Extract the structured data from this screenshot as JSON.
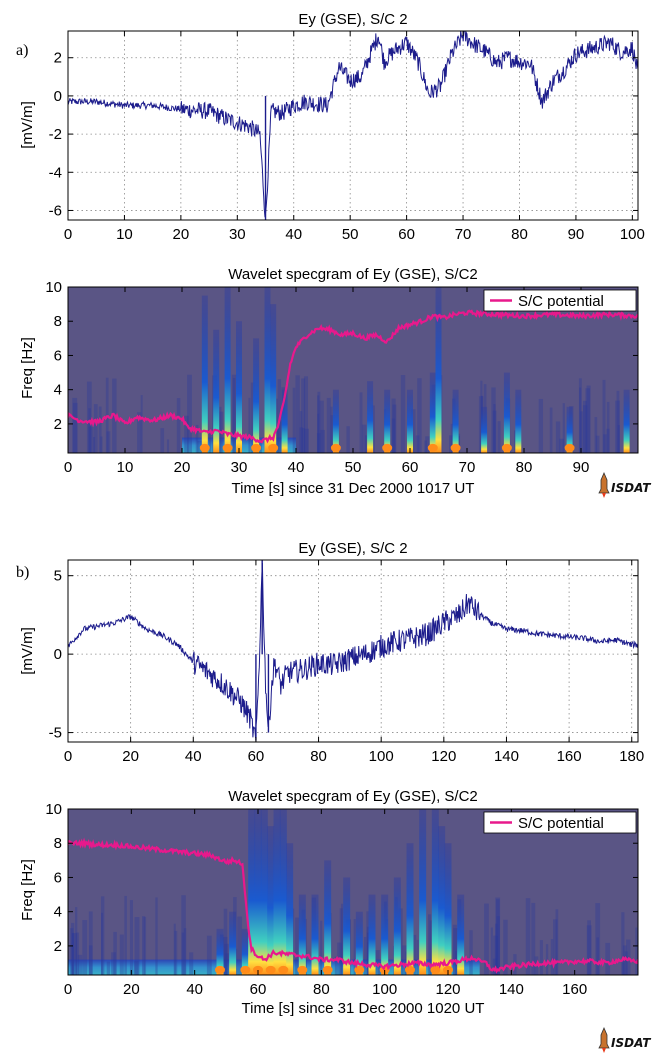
{
  "panels": [
    {
      "letter": "a)",
      "title": "Ey (GSE), S/C 2",
      "ylabel": "[mV/m]",
      "xticks": [
        "0",
        "10",
        "20",
        "30",
        "40",
        "50",
        "60",
        "70",
        "80",
        "90",
        "100"
      ],
      "yticks": [
        "2",
        "0",
        "-2",
        "-4",
        "-6"
      ]
    },
    {
      "title": "Wavelet specgram of Ey (GSE), S/C2",
      "ylabel": "Freq [Hz]",
      "xlabel": "Time [s] since 31 Dec 2000 1017 UT",
      "xticks": [
        "0",
        "10",
        "20",
        "30",
        "40",
        "50",
        "60",
        "70",
        "80",
        "90"
      ],
      "yticks": [
        "10",
        "8",
        "6",
        "4",
        "2"
      ],
      "legend": "S/C potential",
      "logo": "ISDAT"
    },
    {
      "letter": "b)",
      "title": "Ey (GSE), S/C 2",
      "ylabel": "[mV/m]",
      "xticks": [
        "0",
        "20",
        "40",
        "60",
        "80",
        "100",
        "120",
        "140",
        "160",
        "180"
      ],
      "yticks": [
        "5",
        "0",
        "-5"
      ]
    },
    {
      "title": "Wavelet specgram of Ey (GSE), S/C2",
      "ylabel": "Freq [Hz]",
      "xlabel": "Time [s] since 31 Dec 2000 1020 UT",
      "xticks": [
        "0",
        "20",
        "40",
        "60",
        "80",
        "100",
        "120",
        "140",
        "160"
      ],
      "yticks": [
        "10",
        "8",
        "6",
        "4",
        "2"
      ],
      "legend": "S/C potential",
      "logo": "ISDAT"
    }
  ],
  "chart_data": [
    {
      "type": "line",
      "title": "Ey (GSE), S/C 2",
      "ylabel": "[mV/m]",
      "xlim": [
        0,
        101
      ],
      "ylim": [
        -6.5,
        3.4
      ],
      "grid": true,
      "color": "#1c1c8c",
      "series": [
        {
          "x": [
            0,
            5,
            10,
            15,
            20,
            25,
            28,
            30,
            32,
            34,
            35,
            36,
            38,
            40,
            42,
            44,
            46,
            48,
            50,
            52,
            54,
            55,
            56,
            58,
            60,
            62,
            64,
            66,
            68,
            70,
            72,
            74,
            76,
            78,
            80,
            82,
            84,
            86,
            88,
            90,
            92,
            94,
            96,
            98,
            100,
            101
          ],
          "values": [
            -0.3,
            -0.3,
            -0.5,
            -0.5,
            -0.7,
            -0.8,
            -1.2,
            -1.4,
            -1.6,
            -2.0,
            -6.5,
            -0.8,
            -0.9,
            -0.5,
            -0.3,
            -0.4,
            -0.5,
            1.5,
            0.8,
            1.0,
            2.5,
            3.2,
            1.8,
            2.4,
            2.8,
            1.8,
            0.1,
            0.5,
            2.2,
            3.2,
            2.7,
            2.3,
            1.7,
            2.0,
            1.8,
            1.7,
            -0.3,
            0.8,
            1.4,
            2.2,
            2.4,
            2.6,
            2.8,
            2.3,
            2.5,
            1.2
          ]
        }
      ]
    },
    {
      "type": "heatmap",
      "title": "Wavelet specgram of Ey (GSE), S/C2",
      "xlabel": "Time [s] since 31 Dec 2000 1017 UT",
      "ylabel": "Freq [Hz]",
      "xlim": [
        0,
        100
      ],
      "ylim": [
        0.3,
        10
      ],
      "legend": {
        "entries": [
          "S/C potential"
        ],
        "position": "top-right"
      },
      "series": [
        {
          "name": "S/C potential",
          "color": "#e8198c",
          "x": [
            0,
            2,
            5,
            8,
            10,
            12,
            15,
            18,
            20,
            21,
            22,
            24,
            26,
            28,
            30,
            32,
            34,
            35,
            36,
            37,
            38,
            39,
            40,
            42,
            44,
            46,
            48,
            50,
            52,
            54,
            56,
            58,
            60,
            62,
            64,
            66,
            68,
            70,
            75,
            80,
            85,
            90,
            95,
            100
          ],
          "values": [
            2.5,
            2.2,
            2.1,
            2.5,
            2.0,
            2.4,
            2.2,
            2.5,
            2.3,
            1.8,
            1.7,
            1.5,
            1.6,
            1.4,
            1.3,
            1.2,
            1.0,
            1.1,
            1.2,
            2.0,
            3.5,
            5.5,
            6.5,
            7.2,
            7.6,
            7.5,
            7.2,
            7.3,
            7.0,
            7.2,
            6.8,
            7.6,
            7.8,
            8.0,
            8.3,
            8.2,
            8.4,
            8.5,
            8.4,
            8.3,
            8.4,
            8.3,
            8.4,
            8.3
          ]
        }
      ],
      "bursts_x": [
        24,
        26,
        28,
        30,
        33,
        35,
        36,
        38,
        47,
        53,
        56,
        60,
        64,
        65,
        68,
        73,
        77,
        79,
        88,
        98
      ],
      "bursts_height": [
        9.5,
        7.5,
        10,
        8,
        7,
        10,
        9,
        4,
        4,
        4.5,
        4,
        4,
        5,
        10,
        4,
        3,
        5,
        4,
        3,
        4
      ],
      "enhanced_band_x": [
        20,
        40
      ]
    },
    {
      "type": "line",
      "title": "Ey (GSE), S/C 2",
      "ylabel": "[mV/m]",
      "xlim": [
        0,
        182
      ],
      "ylim": [
        -5.6,
        6
      ],
      "grid": true,
      "color": "#1c1c8c",
      "series": [
        {
          "x": [
            0,
            5,
            10,
            15,
            20,
            25,
            30,
            35,
            40,
            45,
            50,
            55,
            58,
            60,
            61,
            62,
            63,
            64,
            65,
            66,
            68,
            70,
            75,
            80,
            85,
            90,
            95,
            100,
            105,
            110,
            115,
            120,
            125,
            128,
            130,
            135,
            140,
            145,
            150,
            155,
            160,
            165,
            170,
            175,
            180,
            182
          ],
          "values": [
            0.5,
            1.6,
            1.8,
            2.0,
            2.4,
            1.6,
            1.2,
            0.6,
            -0.5,
            -1.2,
            -2.0,
            -3.0,
            -4.0,
            -5.5,
            -1.0,
            6.0,
            -1.5,
            -5.0,
            -2.0,
            -0.5,
            -2.0,
            -1.2,
            -1.0,
            -0.6,
            -0.7,
            -0.3,
            0.0,
            0.5,
            0.8,
            1.0,
            1.3,
            2.0,
            2.5,
            3.3,
            2.8,
            2.0,
            1.6,
            1.5,
            1.3,
            1.2,
            1.1,
            1.0,
            0.8,
            0.9,
            0.6,
            0.6
          ]
        }
      ]
    },
    {
      "type": "heatmap",
      "title": "Wavelet specgram of Ey (GSE), S/C2",
      "xlabel": "Time [s] since 31 Dec 2000 1020 UT",
      "ylabel": "Freq [Hz]",
      "xlim": [
        0,
        180
      ],
      "ylim": [
        0.3,
        10
      ],
      "legend": {
        "entries": [
          "S/C potential"
        ],
        "position": "top-right"
      },
      "series": [
        {
          "name": "S/C potential",
          "color": "#e8198c",
          "x": [
            0,
            5,
            10,
            15,
            20,
            25,
            30,
            35,
            40,
            45,
            50,
            52,
            54,
            55,
            56,
            57,
            58,
            60,
            62,
            65,
            70,
            75,
            80,
            85,
            90,
            95,
            100,
            105,
            110,
            115,
            120,
            125,
            128,
            130,
            132,
            134,
            135,
            140,
            145,
            150,
            155,
            160,
            165,
            170,
            175,
            180
          ],
          "values": [
            8.0,
            8.0,
            7.9,
            7.9,
            7.8,
            7.7,
            7.6,
            7.5,
            7.4,
            7.3,
            6.9,
            7.0,
            6.9,
            6.8,
            5.0,
            3.0,
            1.8,
            1.4,
            1.2,
            1.6,
            1.5,
            1.4,
            1.2,
            1.2,
            1.0,
            0.9,
            0.8,
            0.9,
            1.0,
            0.9,
            1.0,
            1.2,
            1.3,
            1.1,
            1.0,
            0.6,
            0.6,
            0.8,
            0.9,
            1.0,
            1.0,
            1.1,
            1.1,
            1.0,
            1.2,
            1.1
          ]
        }
      ],
      "bursts_x": [
        48,
        52,
        56,
        58,
        60,
        62,
        64,
        66,
        68,
        70,
        74,
        78,
        82,
        88,
        92,
        96,
        100,
        104,
        108,
        112,
        116,
        118,
        120,
        124
      ],
      "bursts_height": [
        3,
        4,
        3,
        10,
        10,
        10,
        9,
        10,
        10,
        8,
        5,
        5,
        7,
        6,
        4,
        5,
        5,
        6,
        8,
        10,
        10,
        9,
        8,
        5
      ],
      "enhanced_band_x": [
        0,
        130
      ]
    }
  ]
}
